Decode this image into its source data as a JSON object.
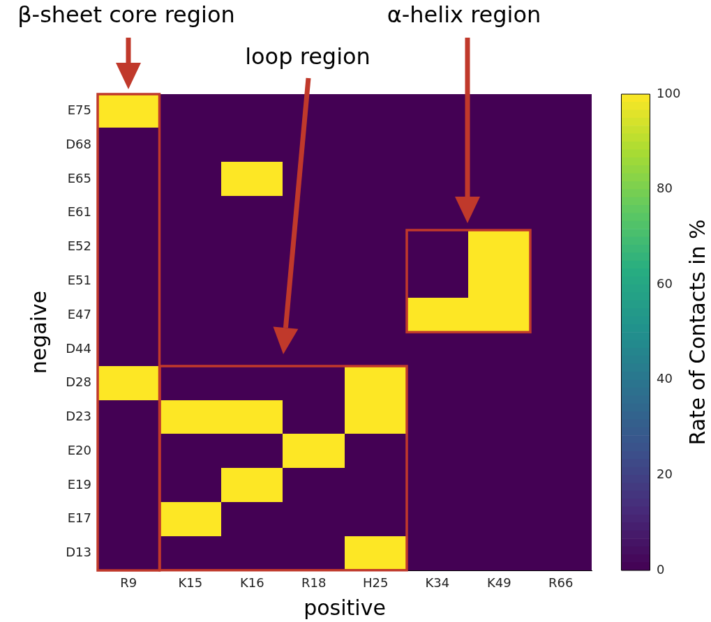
{
  "chart_data": {
    "type": "heatmap",
    "xlabel": "positive",
    "ylabel": "negaive",
    "clabel": "Rate of Contacts in %",
    "categories": [
      "R9",
      "K15",
      "K16",
      "R18",
      "H25",
      "K34",
      "K49",
      "R66"
    ],
    "y_categories": [
      "E75",
      "D68",
      "E65",
      "E61",
      "E52",
      "E51",
      "E47",
      "D44",
      "D28",
      "D23",
      "E20",
      "E19",
      "E17",
      "D13"
    ],
    "cells": [
      [
        100,
        0,
        0,
        0,
        0,
        0,
        0,
        0
      ],
      [
        0,
        0,
        0,
        0,
        0,
        0,
        0,
        0
      ],
      [
        0,
        0,
        100,
        0,
        0,
        0,
        0,
        0
      ],
      [
        0,
        0,
        0,
        0,
        0,
        0,
        0,
        0
      ],
      [
        0,
        0,
        0,
        0,
        0,
        0,
        100,
        0
      ],
      [
        0,
        0,
        0,
        0,
        0,
        0,
        100,
        0
      ],
      [
        0,
        0,
        0,
        0,
        0,
        100,
        100,
        0
      ],
      [
        0,
        0,
        0,
        0,
        0,
        0,
        0,
        0
      ],
      [
        100,
        0,
        0,
        0,
        100,
        0,
        0,
        0
      ],
      [
        0,
        100,
        100,
        0,
        100,
        0,
        0,
        0
      ],
      [
        0,
        0,
        0,
        100,
        0,
        0,
        0,
        0
      ],
      [
        0,
        0,
        100,
        0,
        0,
        0,
        0,
        0
      ],
      [
        0,
        100,
        0,
        0,
        0,
        0,
        0,
        0
      ],
      [
        0,
        0,
        0,
        0,
        100,
        0,
        0,
        0
      ]
    ],
    "clim": [
      0,
      100
    ],
    "cticks": [
      0,
      20,
      40,
      60,
      80,
      100
    ],
    "annotations": [
      "β-sheet core region",
      "loop region",
      "α-helix region"
    ]
  }
}
